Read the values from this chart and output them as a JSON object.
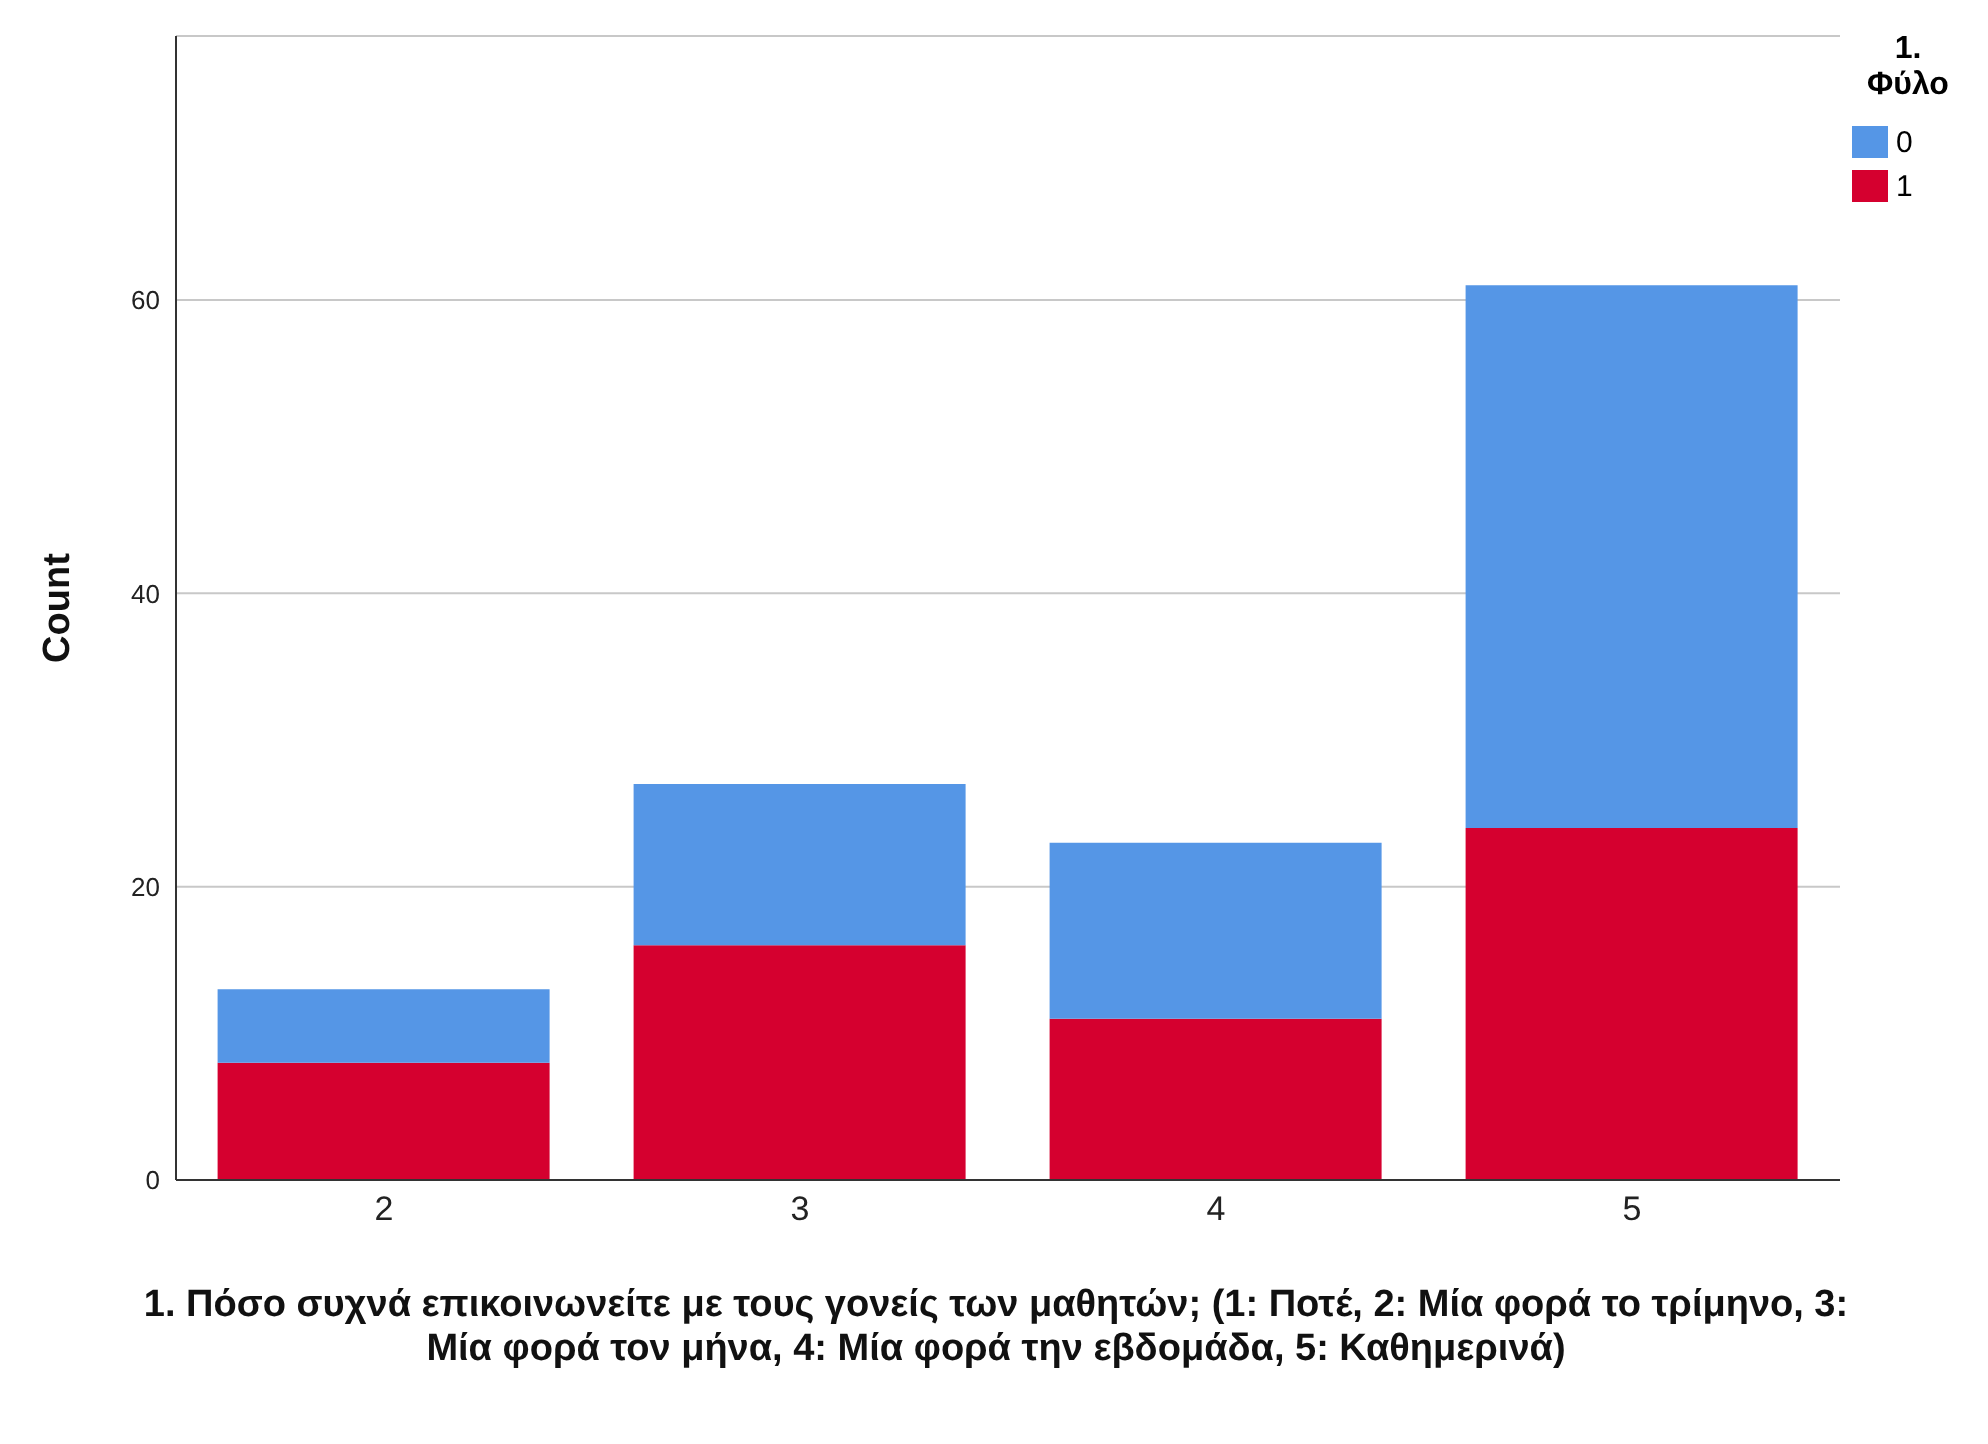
{
  "chart_data": {
    "type": "bar",
    "stacked": true,
    "categories": [
      "2",
      "3",
      "4",
      "5"
    ],
    "series": [
      {
        "name": "1",
        "color": "#d5002f",
        "values": [
          8,
          16,
          11,
          24
        ]
      },
      {
        "name": "0",
        "color": "#5596e6",
        "values": [
          5,
          11,
          12,
          37
        ]
      }
    ],
    "ylim": [
      0,
      78
    ],
    "yticks": [
      0,
      20,
      40,
      60
    ],
    "grid": "y",
    "legend": "top right",
    "legend_title": "1. Φύλο",
    "ylabel": "Count",
    "xlabel": "1. Πόσο συχνά επικοινωνείτε με τους γονείς των μαθητών; (1: Ποτέ, 2: Μία φορά το τρίμηνο, 3: Μία φορά τον μήνα,  4: Μία φορά την εβδομάδα, 5: Καθημερινά)"
  }
}
